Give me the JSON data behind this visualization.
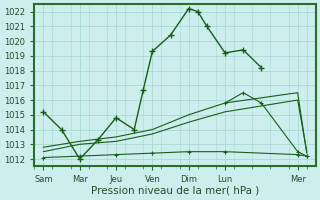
{
  "title": "Pression niveau de la mer( hPa )",
  "background_color": "#cceeed",
  "grid_color": "#aad8d6",
  "line_color": "#1a5e1a",
  "border_color": "#2a6e2a",
  "ylim": [
    1011.5,
    1022.5
  ],
  "yticks": [
    1012,
    1013,
    1014,
    1015,
    1016,
    1017,
    1018,
    1019,
    1020,
    1021,
    1022
  ],
  "xlabels": [
    "Sam",
    "Mar",
    "Jeu",
    "Ven",
    "Dim",
    "Lun",
    "Mer"
  ],
  "xticks_major": [
    0,
    2,
    4,
    6,
    8,
    10,
    14
  ],
  "xlim": [
    -0.5,
    15.0
  ],
  "series1_x": [
    0,
    1,
    2,
    3,
    4,
    5,
    5.5,
    6,
    7,
    8,
    8.5,
    9,
    10,
    11,
    12
  ],
  "series1_y": [
    1015.2,
    1014.0,
    1012.0,
    1013.3,
    1014.8,
    1014.0,
    1016.7,
    1019.3,
    1020.4,
    1022.2,
    1022.0,
    1021.0,
    1019.2,
    1019.4,
    1018.2
  ],
  "series2_x": [
    0,
    2,
    4,
    6,
    8,
    10,
    14,
    14.5
  ],
  "series2_y": [
    1012.1,
    1012.2,
    1012.3,
    1012.4,
    1012.5,
    1012.5,
    1012.3,
    1012.2
  ],
  "series3_x": [
    0,
    2,
    4,
    6,
    8,
    10,
    14,
    14.5
  ],
  "series3_y": [
    1012.5,
    1013.0,
    1013.2,
    1013.7,
    1014.5,
    1015.2,
    1016.0,
    1012.5
  ],
  "series4_x": [
    0,
    2,
    4,
    6,
    8,
    10,
    14,
    14.5
  ],
  "series4_y": [
    1012.8,
    1013.2,
    1013.5,
    1014.0,
    1015.0,
    1015.8,
    1016.5,
    1012.4
  ],
  "series5_x": [
    10,
    11,
    12,
    14,
    14.5
  ],
  "series5_y": [
    1015.8,
    1016.5,
    1015.8,
    1012.5,
    1012.2
  ],
  "tick_fontsize": 6,
  "label_fontsize": 7.5
}
